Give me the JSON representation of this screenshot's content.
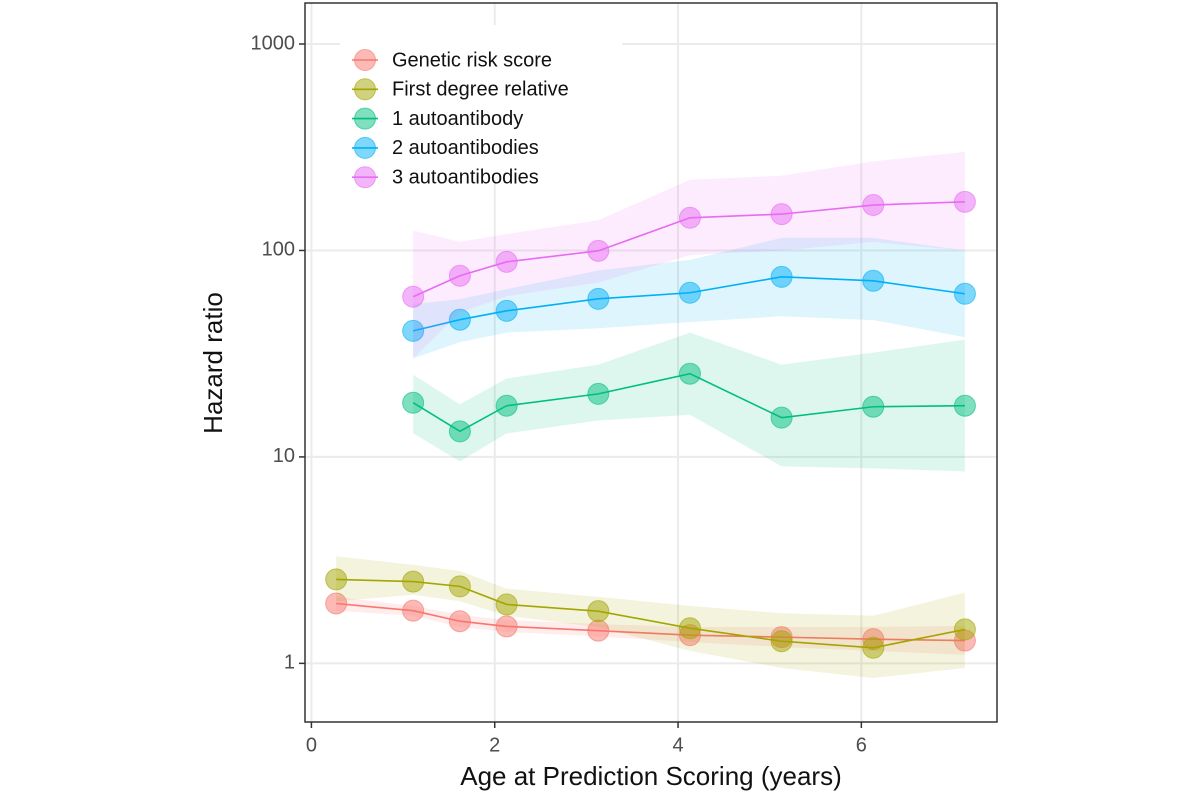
{
  "chart_data": {
    "type": "line",
    "x_label": "Age at Prediction Scoring (years)",
    "y_label": "Hazard ratio",
    "x": [
      0.27,
      1.11,
      1.62,
      2.13,
      3.13,
      4.13,
      5.13,
      6.13,
      7.13
    ],
    "xlim": [
      -0.07,
      7.48
    ],
    "xticks": [
      0,
      2,
      4,
      6
    ],
    "ylim": [
      0.52,
      1580
    ],
    "yticks": [
      1,
      10,
      100,
      1000
    ],
    "log_y": true,
    "grid": true,
    "legend": "upper left",
    "series": [
      {
        "name": "Genetic risk score",
        "color": "#F8766D",
        "values": [
          1.95,
          1.8,
          1.6,
          1.51,
          1.44,
          1.37,
          1.34,
          1.31,
          1.29
        ],
        "lower": [
          1.8,
          1.7,
          1.5,
          1.42,
          1.35,
          1.27,
          1.2,
          1.15,
          1.1
        ],
        "upper": [
          2.1,
          1.9,
          1.72,
          1.62,
          1.55,
          1.5,
          1.5,
          1.5,
          1.52
        ]
      },
      {
        "name": "First degree relative",
        "color": "#A3A500",
        "values": [
          2.55,
          2.49,
          2.36,
          1.93,
          1.79,
          1.48,
          1.28,
          1.19,
          1.46
        ],
        "lower": [
          2.0,
          2.15,
          2.0,
          1.7,
          1.5,
          1.15,
          0.95,
          0.85,
          0.95
        ],
        "upper": [
          3.3,
          3.0,
          2.8,
          2.3,
          2.1,
          1.9,
          1.75,
          1.7,
          2.2
        ]
      },
      {
        "name": "1 autoantibody",
        "color": "#00BF7D",
        "values": [
          null,
          18.3,
          13.3,
          17.7,
          20.2,
          25.3,
          15.5,
          17.5,
          17.7
        ],
        "lower": [
          null,
          13,
          9.5,
          13,
          15,
          16,
          9,
          8.8,
          8.5
        ],
        "upper": [
          null,
          25,
          18,
          24,
          28,
          40,
          28,
          32,
          37
        ]
      },
      {
        "name": "2 autoantibodies",
        "color": "#00B0F6",
        "values": [
          null,
          40.8,
          46.2,
          51.0,
          58.3,
          62.4,
          74.5,
          71.3,
          61.7
        ],
        "lower": [
          null,
          30,
          36,
          40,
          42,
          45,
          48,
          46,
          38
        ],
        "upper": [
          null,
          55,
          58,
          65,
          80,
          90,
          115,
          115,
          100
        ]
      },
      {
        "name": "3 autoantibodies",
        "color": "#E76BF3",
        "values": [
          null,
          59.7,
          75.4,
          88.1,
          99.6,
          144,
          150,
          166,
          172
        ],
        "lower": [
          null,
          30,
          50,
          60,
          70,
          95,
          100,
          110,
          100
        ],
        "upper": [
          null,
          125,
          110,
          120,
          140,
          220,
          230,
          270,
          300
        ]
      }
    ]
  }
}
